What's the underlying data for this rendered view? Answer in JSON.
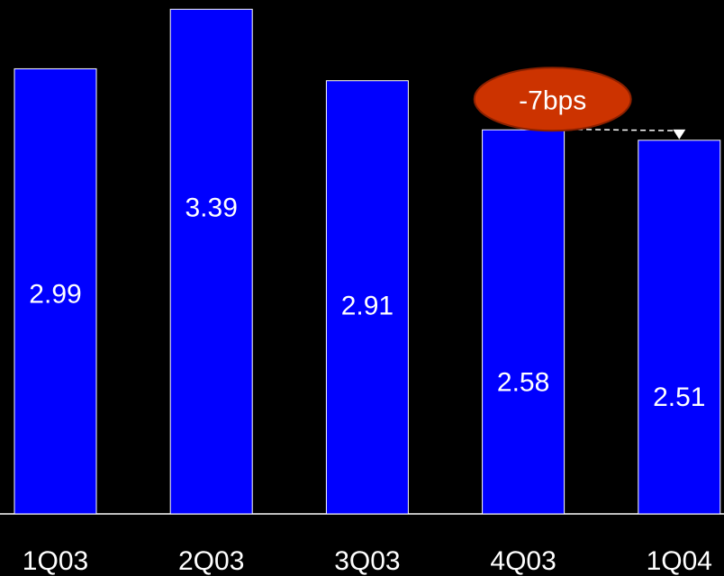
{
  "chart_data": {
    "type": "bar",
    "title": "",
    "xlabel": "",
    "ylabel": "",
    "categories": [
      "1Q03",
      "2Q03",
      "3Q03",
      "4Q03",
      "1Q04"
    ],
    "values": [
      2.99,
      3.39,
      2.91,
      2.58,
      2.51
    ],
    "data_labels": [
      "2.99",
      "3.39",
      "2.91",
      "2.58",
      "2.51"
    ],
    "ylim": [
      0,
      3.5
    ],
    "grid": false,
    "annotation": {
      "text": "-7bps",
      "from_category": "4Q03",
      "to_category": "1Q04"
    },
    "colors": {
      "background": "#000000",
      "bar_fill": "#0000ff",
      "bar_outline": "#ffffff",
      "text": "#ffffff",
      "callout_fill": "#cc3300",
      "callout_outline": "#8a2000"
    }
  }
}
